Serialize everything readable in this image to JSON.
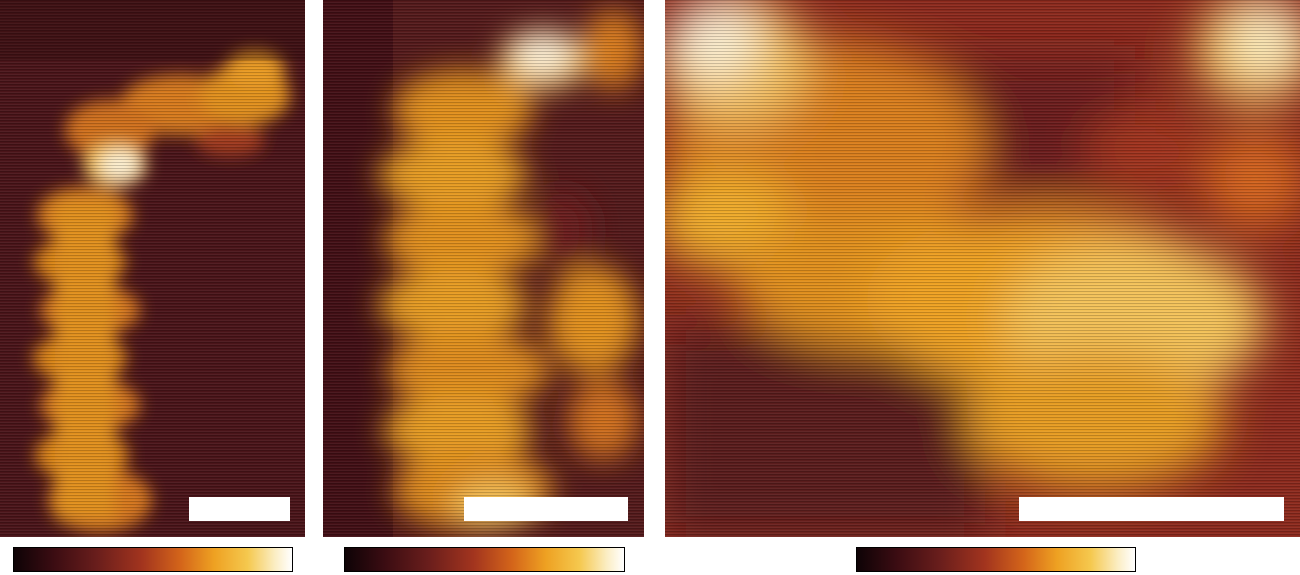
{
  "figure": {
    "panels": [
      {
        "id": "a",
        "content": "afm-height-image",
        "scale_bar": "unlabeled"
      },
      {
        "id": "b",
        "content": "afm-height-image",
        "scale_bar": "unlabeled"
      },
      {
        "id": "c",
        "content": "afm-height-image",
        "scale_bar": "unlabeled"
      }
    ],
    "colormap": {
      "name": "afm-hot",
      "stops": [
        "#0e0306",
        "#3a0c12",
        "#6a1e1c",
        "#a2341e",
        "#d4651a",
        "#eea122",
        "#f5c84e",
        "#fbeec5",
        "#ffffff"
      ]
    },
    "colorbars": [
      {
        "id": "a",
        "labels": "none"
      },
      {
        "id": "b",
        "labels": "none"
      },
      {
        "id": "c",
        "labels": "none"
      }
    ]
  }
}
